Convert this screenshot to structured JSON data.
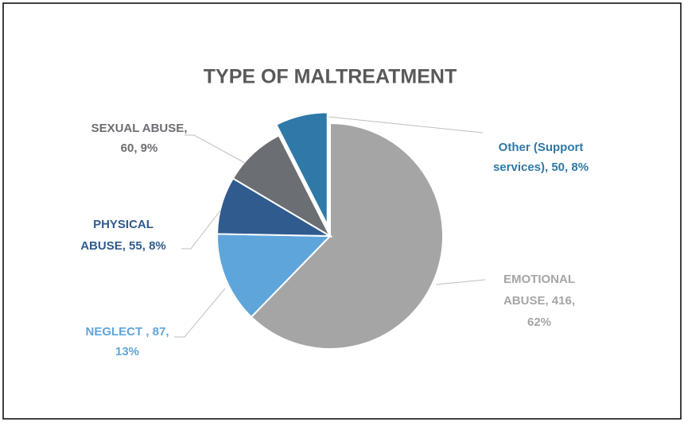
{
  "chart_data": {
    "type": "pie",
    "title": "TYPE OF MALTREATMENT",
    "values": [
      416,
      87,
      55,
      60,
      50
    ],
    "value_labels": [
      [
        "EMOTIONAL",
        "ABUSE, 416,",
        "62%"
      ],
      [
        "NEGLECT , 87,",
        "13%"
      ],
      [
        "PHYSICAL",
        "ABUSE, 55, 8%"
      ],
      [
        "SEXUAL ABUSE,",
        "60, 9%"
      ],
      [
        "Other (Support",
        "services), 50, 8%"
      ]
    ],
    "colors": [
      "#a5a5a5",
      "#5ea5dc",
      "#2f5b8f",
      "#6b6e72",
      "#2e79a8"
    ],
    "label_colors": [
      "#a5a5a5",
      "#5ea5dc",
      "#2f5b8f",
      "#6b6e72",
      "#2e79a8"
    ],
    "explode": [
      false,
      false,
      false,
      false,
      true
    ]
  }
}
